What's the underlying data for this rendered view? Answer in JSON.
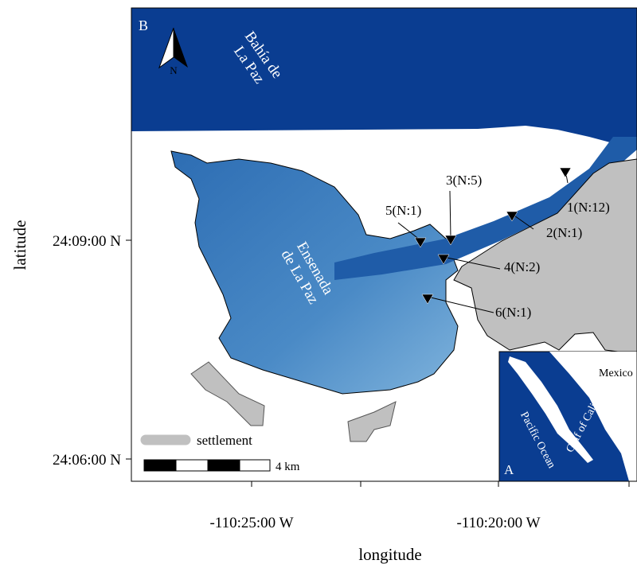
{
  "panel_label": "B",
  "north_label": "N",
  "water_labels": {
    "bay": [
      "Bahía de",
      "La Paz"
    ],
    "lagoon": [
      "Ensenada",
      "de La Paz"
    ]
  },
  "stations": [
    "1(N:12)",
    "2(N:1)",
    "3(N:5)",
    "4(N:2)",
    "5(N:1)",
    "6(N:1)"
  ],
  "axes": {
    "y_ticks": [
      "24:09:00 N",
      "24:06:00 N"
    ],
    "x_ticks": [
      "-110:25:00 W",
      "-110:20:00 W"
    ],
    "x_label": "longitude",
    "y_label": "latitude"
  },
  "legend": {
    "settlement": "settlement"
  },
  "scale_bar": "4 km",
  "inset": {
    "label": "A",
    "country": "Mexico",
    "gulf": "Gulf of California",
    "ocean": "Pacific Ocean"
  }
}
